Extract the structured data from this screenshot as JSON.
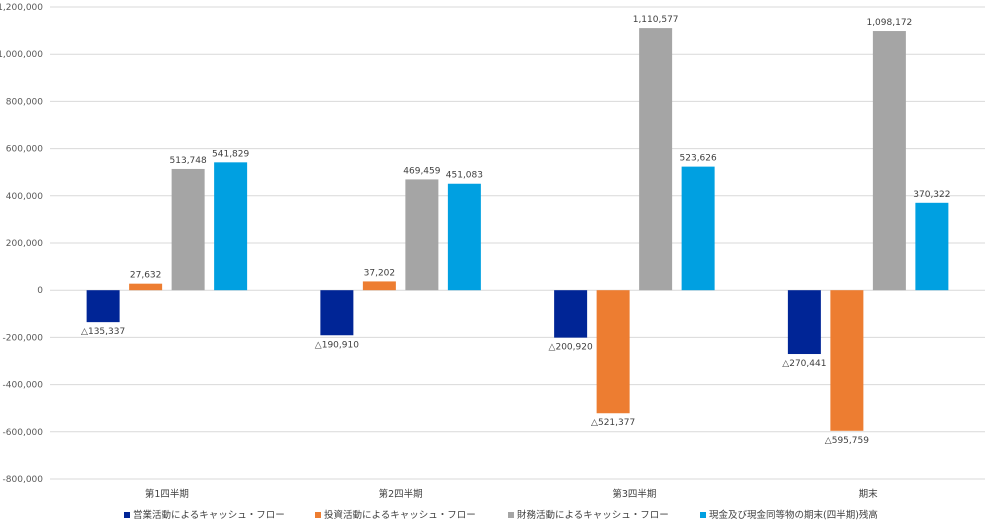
{
  "chart_data": {
    "type": "bar",
    "categories": [
      "第1四半期",
      "第2四半期",
      "第3四半期",
      "期末"
    ],
    "series": [
      {
        "name": "営業活動によるキャッシュ・フロー",
        "color": "#002596",
        "values": [
          -135337,
          -190910,
          -200920,
          -270441
        ],
        "labels": [
          "△135,337",
          "△190,910",
          "△200,920",
          "△270,441"
        ]
      },
      {
        "name": "投資活動によるキャッシュ・フロー",
        "color": "#ED7D31",
        "values": [
          27632,
          37202,
          -521377,
          -595759
        ],
        "labels": [
          "27,632",
          "37,202",
          "△521,377",
          "△595,759"
        ]
      },
      {
        "name": "財務活動によるキャッシュ・フロー",
        "color": "#A5A5A5",
        "values": [
          513748,
          469459,
          1110577,
          1098172
        ],
        "labels": [
          "513,748",
          "469,459",
          "1,110,577",
          "1,098,172"
        ]
      },
      {
        "name": "現金及び現金同等物の期末(四半期)残高",
        "color": "#00A0E1",
        "values": [
          541829,
          451083,
          523626,
          370322
        ],
        "labels": [
          "541,829",
          "451,083",
          "523,626",
          "370,322"
        ]
      }
    ],
    "ylim": [
      -800000,
      1200000
    ],
    "yticks": [
      -800000,
      -600000,
      -400000,
      -200000,
      0,
      200000,
      400000,
      600000,
      800000,
      1000000,
      1200000
    ],
    "ytick_labels": [
      "-800,000",
      "-600,000",
      "-400,000",
      "-200,000",
      "0",
      "200,000",
      "400,000",
      "600,000",
      "800,000",
      "1,000,000",
      "1,200,000"
    ],
    "grid": true,
    "legend_position": "bottom",
    "title": "",
    "xlabel": "",
    "ylabel": ""
  }
}
